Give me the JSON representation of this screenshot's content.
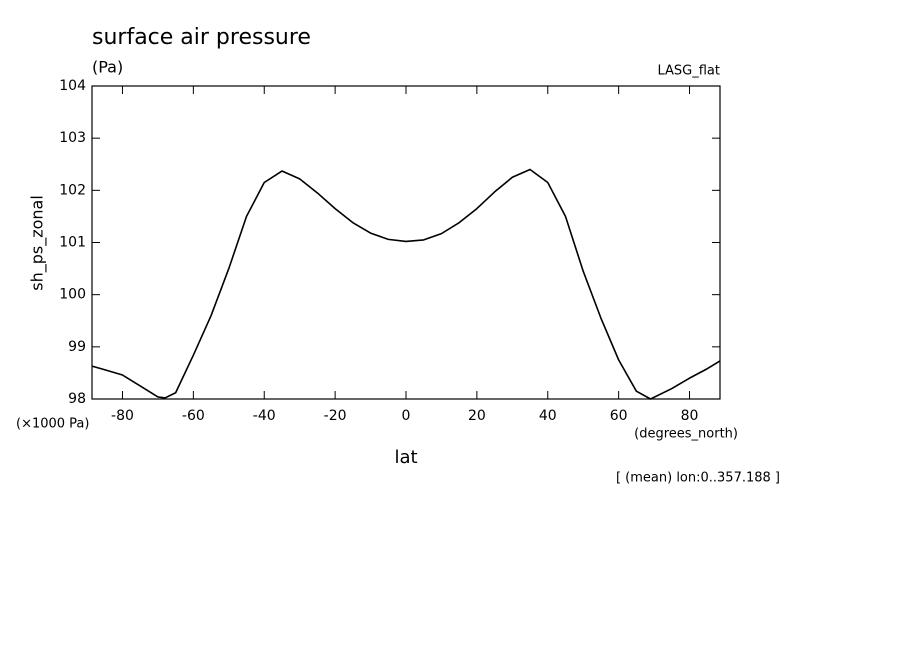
{
  "chart_data": {
    "type": "line",
    "title": "surface air pressure",
    "units_label": "(Pa)",
    "dataset_label": "LASG_flat",
    "y_label": "sh_ps_zonal",
    "x_label": "lat",
    "y_scale_label": "(×1000 Pa)",
    "x_units_label": "(degrees_north)",
    "footnote": "[ (mean) lon:0..357.188 ]",
    "x": [
      -88.6,
      -85,
      -80,
      -75,
      -70,
      -68,
      -65,
      -60,
      -55,
      -50,
      -45,
      -40,
      -35,
      -30,
      -25,
      -20,
      -15,
      -10,
      -5,
      0,
      5,
      10,
      15,
      20,
      25,
      30,
      35,
      40,
      45,
      50,
      55,
      60,
      65,
      69,
      75,
      80,
      85,
      88.6
    ],
    "series": [
      {
        "color": "#000000",
        "values": [
          98.63,
          98.56,
          98.46,
          98.25,
          98.04,
          98.02,
          98.12,
          98.84,
          99.6,
          100.5,
          101.5,
          102.15,
          102.37,
          102.22,
          101.95,
          101.65,
          101.38,
          101.18,
          101.06,
          101.02,
          101.05,
          101.17,
          101.38,
          101.65,
          101.97,
          102.25,
          102.4,
          102.15,
          101.5,
          100.45,
          99.55,
          98.75,
          98.15,
          98.0,
          98.2,
          98.4,
          98.58,
          98.73
        ]
      }
    ],
    "xlim": [
      -88.6,
      88.6
    ],
    "ylim": [
      98,
      104
    ],
    "xticks": [
      -80,
      -60,
      -40,
      -20,
      0,
      20,
      40,
      60,
      80
    ],
    "yticks": [
      98,
      99,
      100,
      101,
      102,
      103,
      104
    ],
    "grid": false
  }
}
